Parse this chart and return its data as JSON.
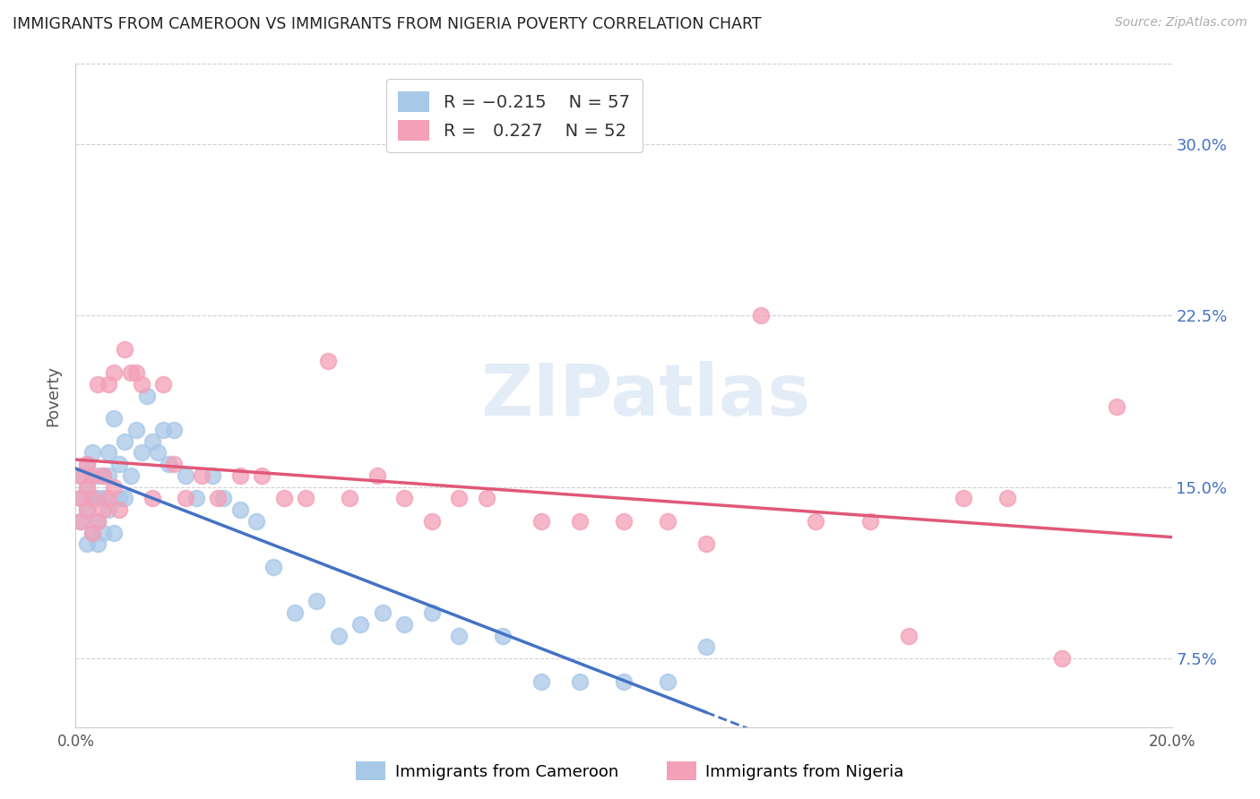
{
  "title": "IMMIGRANTS FROM CAMEROON VS IMMIGRANTS FROM NIGERIA POVERTY CORRELATION CHART",
  "source": "Source: ZipAtlas.com",
  "ylabel": "Poverty",
  "ytick_labels": [
    "7.5%",
    "15.0%",
    "22.5%",
    "30.0%"
  ],
  "ytick_values": [
    0.075,
    0.15,
    0.225,
    0.3
  ],
  "xlim": [
    0.0,
    0.2
  ],
  "ylim": [
    0.045,
    0.335
  ],
  "legend_label1": "Immigrants from Cameroon",
  "legend_label2": "Immigrants from Nigeria",
  "R1": "-0.215",
  "N1": "57",
  "R2": "0.227",
  "N2": "52",
  "color_cameroon": "#a8c8e8",
  "color_nigeria": "#f4a0b8",
  "color_line1": "#4472c4",
  "color_line2": "#e05878",
  "background_color": "#ffffff",
  "cameroon_x": [
    0.001,
    0.001,
    0.001,
    0.002,
    0.002,
    0.002,
    0.002,
    0.003,
    0.003,
    0.003,
    0.003,
    0.004,
    0.004,
    0.004,
    0.004,
    0.005,
    0.005,
    0.005,
    0.006,
    0.006,
    0.006,
    0.007,
    0.007,
    0.008,
    0.008,
    0.009,
    0.009,
    0.01,
    0.011,
    0.012,
    0.013,
    0.014,
    0.015,
    0.016,
    0.017,
    0.018,
    0.02,
    0.022,
    0.025,
    0.027,
    0.03,
    0.033,
    0.036,
    0.04,
    0.044,
    0.048,
    0.052,
    0.056,
    0.06,
    0.065,
    0.07,
    0.078,
    0.085,
    0.092,
    0.1,
    0.108,
    0.115
  ],
  "cameroon_y": [
    0.135,
    0.145,
    0.155,
    0.125,
    0.14,
    0.15,
    0.16,
    0.13,
    0.145,
    0.155,
    0.165,
    0.125,
    0.135,
    0.145,
    0.155,
    0.13,
    0.145,
    0.155,
    0.14,
    0.155,
    0.165,
    0.13,
    0.18,
    0.145,
    0.16,
    0.145,
    0.17,
    0.155,
    0.175,
    0.165,
    0.19,
    0.17,
    0.165,
    0.175,
    0.16,
    0.175,
    0.155,
    0.145,
    0.155,
    0.145,
    0.14,
    0.135,
    0.115,
    0.095,
    0.1,
    0.085,
    0.09,
    0.095,
    0.09,
    0.095,
    0.085,
    0.085,
    0.065,
    0.065,
    0.065,
    0.065,
    0.08
  ],
  "nigeria_x": [
    0.001,
    0.001,
    0.001,
    0.002,
    0.002,
    0.002,
    0.003,
    0.003,
    0.003,
    0.004,
    0.004,
    0.005,
    0.005,
    0.006,
    0.006,
    0.007,
    0.007,
    0.008,
    0.009,
    0.01,
    0.011,
    0.012,
    0.014,
    0.016,
    0.018,
    0.02,
    0.023,
    0.026,
    0.03,
    0.034,
    0.038,
    0.042,
    0.046,
    0.05,
    0.055,
    0.06,
    0.065,
    0.07,
    0.075,
    0.085,
    0.092,
    0.1,
    0.108,
    0.115,
    0.125,
    0.135,
    0.145,
    0.152,
    0.162,
    0.17,
    0.18,
    0.19
  ],
  "nigeria_y": [
    0.135,
    0.145,
    0.155,
    0.14,
    0.15,
    0.16,
    0.13,
    0.145,
    0.155,
    0.135,
    0.195,
    0.14,
    0.155,
    0.145,
    0.195,
    0.15,
    0.2,
    0.14,
    0.21,
    0.2,
    0.2,
    0.195,
    0.145,
    0.195,
    0.16,
    0.145,
    0.155,
    0.145,
    0.155,
    0.155,
    0.145,
    0.145,
    0.205,
    0.145,
    0.155,
    0.145,
    0.135,
    0.145,
    0.145,
    0.135,
    0.135,
    0.135,
    0.135,
    0.125,
    0.225,
    0.135,
    0.135,
    0.085,
    0.145,
    0.145,
    0.075,
    0.185
  ]
}
